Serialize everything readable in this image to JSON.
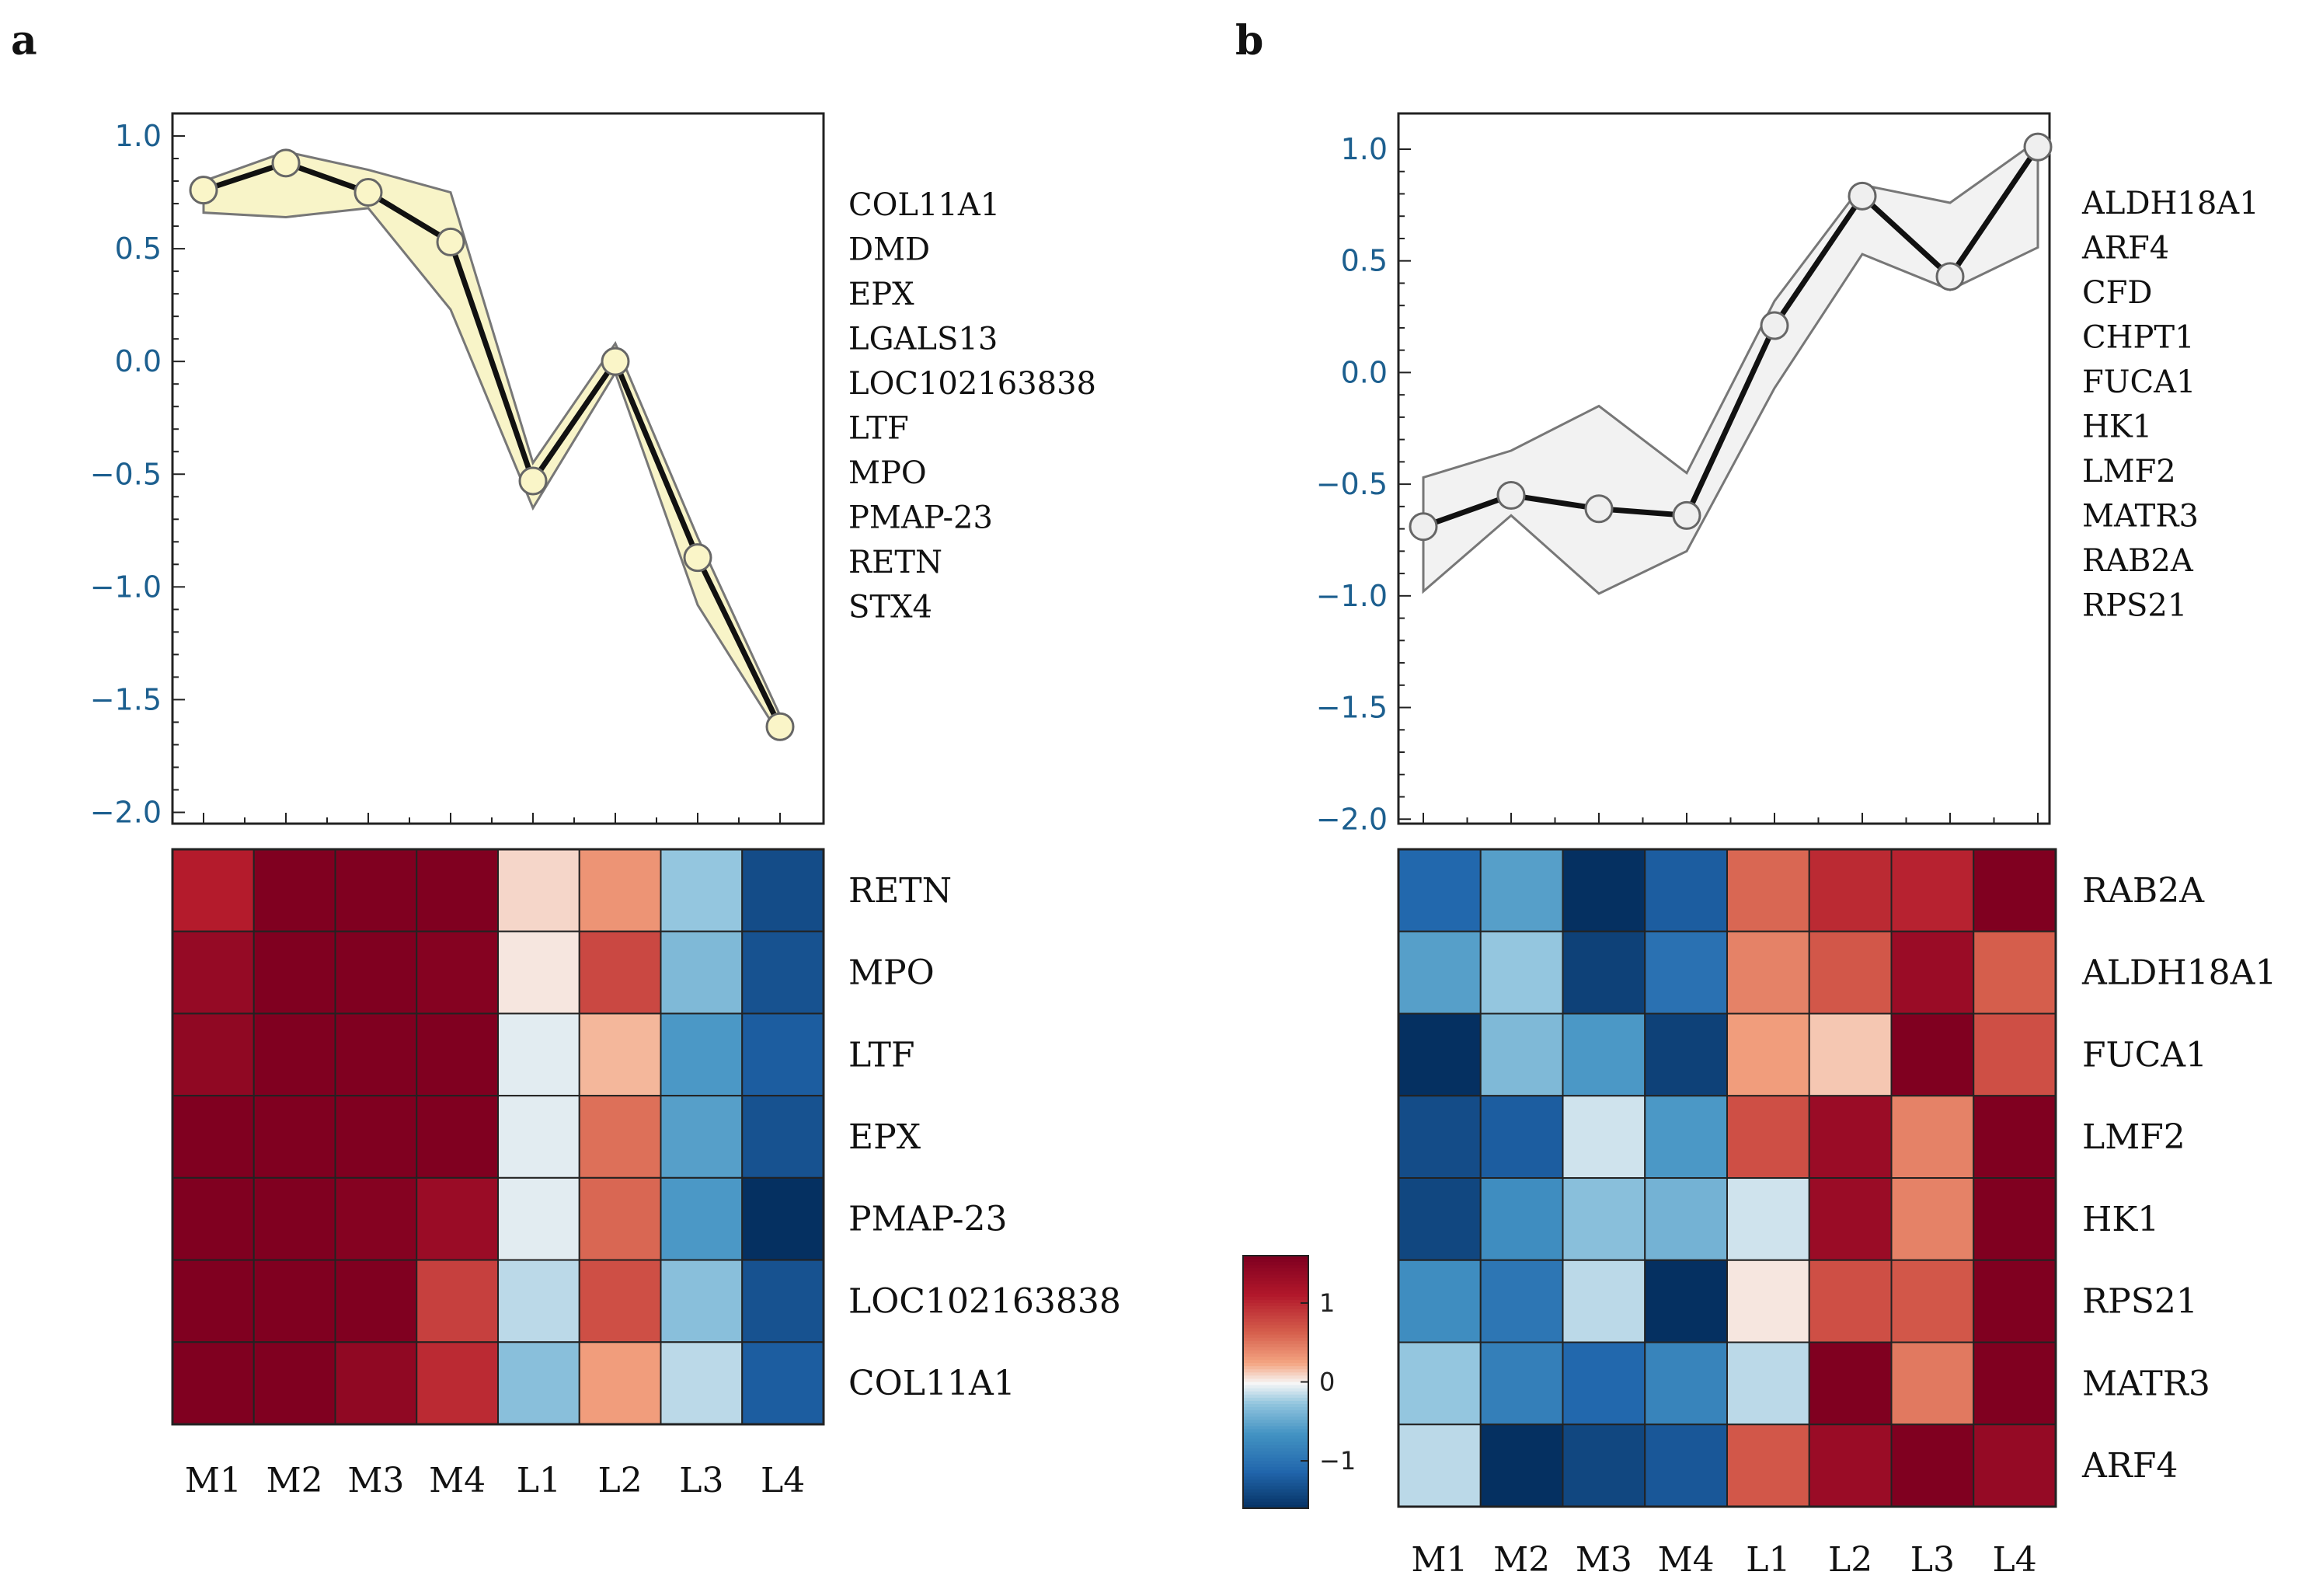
{
  "chart_data": [
    {
      "id": "a",
      "type": "line",
      "panel_label": "a",
      "x": [
        "M1",
        "M2",
        "M3",
        "M4",
        "L1",
        "L2",
        "L3",
        "L4"
      ],
      "ylim": [
        -2.05,
        1.1
      ],
      "yticks": [
        1.0,
        0.5,
        0.0,
        -0.5,
        -1.0,
        -1.5,
        -2.0
      ],
      "ytick_labels": [
        "1.0",
        "0.5",
        "0.0",
        "−0.5",
        "−1.0",
        "−1.5",
        "−2.0"
      ],
      "series": [
        {
          "name": "mean",
          "values": [
            0.76,
            0.88,
            0.75,
            0.53,
            -0.53,
            0.0,
            -0.87,
            -1.62
          ]
        },
        {
          "name": "upper",
          "values": [
            0.8,
            0.93,
            0.85,
            0.75,
            -0.45,
            0.08,
            -0.78,
            -1.57
          ]
        },
        {
          "name": "lower",
          "values": [
            0.66,
            0.64,
            0.68,
            0.23,
            -0.65,
            -0.05,
            -1.08,
            -1.66
          ]
        }
      ],
      "fill_color": "#f8f4c8",
      "marker_color": "#faf5c8",
      "genes": [
        "COL11A1",
        "DMD",
        "EPX",
        "LGALS13",
        "LOC102163838",
        "LTF",
        "MPO",
        "PMAP-23",
        "RETN",
        "STX4"
      ]
    },
    {
      "id": "b",
      "type": "line",
      "panel_label": "b",
      "x": [
        "M1",
        "M2",
        "M3",
        "M4",
        "L1",
        "L2",
        "L3",
        "L4"
      ],
      "ylim": [
        -2.02,
        1.16
      ],
      "yticks": [
        1.0,
        0.5,
        0.0,
        -0.5,
        -1.0,
        -1.5,
        -2.0
      ],
      "ytick_labels": [
        "1.0",
        "0.5",
        "0.0",
        "−0.5",
        "−1.0",
        "−1.5",
        "−2.0"
      ],
      "series": [
        {
          "name": "mean",
          "values": [
            -0.69,
            -0.55,
            -0.61,
            -0.64,
            0.21,
            0.79,
            0.43,
            1.01
          ]
        },
        {
          "name": "upper",
          "values": [
            -0.47,
            -0.35,
            -0.15,
            -0.45,
            0.32,
            0.84,
            0.76,
            1.04
          ]
        },
        {
          "name": "lower",
          "values": [
            -0.98,
            -0.64,
            -0.99,
            -0.8,
            -0.07,
            0.53,
            0.37,
            0.56
          ]
        }
      ],
      "fill_color": "#f2f2f2",
      "marker_color": "#efefef",
      "genes": [
        "ALDH18A1",
        "ARF4",
        "CFD",
        "CHPT1",
        "FUCA1",
        "HK1",
        "LMF2",
        "MATR3",
        "RAB2A",
        "RPS21"
      ]
    },
    {
      "id": "a_heatmap",
      "type": "heatmap",
      "columns": [
        "M1",
        "M2",
        "M3",
        "M4",
        "L1",
        "L2",
        "L3",
        "L4"
      ],
      "rows": [
        "RETN",
        "MPO",
        "LTF",
        "EPX",
        "PMAP-23",
        "LOC102163838",
        "COL11A1"
      ],
      "values": [
        [
          1.1,
          1.8,
          1.7,
          1.65,
          0.1,
          0.35,
          -0.25,
          -1.35
        ],
        [
          1.4,
          1.75,
          1.6,
          1.55,
          0.05,
          0.8,
          -0.35,
          -1.3
        ],
        [
          1.45,
          1.9,
          1.75,
          1.6,
          -0.05,
          0.2,
          -0.6,
          -1.2
        ],
        [
          1.65,
          1.8,
          1.85,
          1.6,
          -0.05,
          0.55,
          -0.55,
          -1.3
        ],
        [
          1.6,
          1.65,
          1.55,
          1.35,
          -0.05,
          0.6,
          -0.6,
          -1.7
        ],
        [
          1.65,
          1.9,
          1.6,
          0.85,
          -0.15,
          0.75,
          -0.3,
          -1.3
        ],
        [
          1.75,
          1.9,
          1.45,
          1.0,
          -0.3,
          0.3,
          -0.15,
          -1.2
        ]
      ],
      "vmin": -1.6,
      "vmax": 1.6
    },
    {
      "id": "b_heatmap",
      "type": "heatmap",
      "columns": [
        "M1",
        "M2",
        "M3",
        "M4",
        "L1",
        "L2",
        "L3",
        "L4"
      ],
      "rows": [
        "RAB2A",
        "ALDH18A1",
        "FUCA1",
        "LMF2",
        "HK1",
        "RPS21",
        "MATR3",
        "ARF4"
      ],
      "values": [
        [
          -1.1,
          -0.55,
          -1.6,
          -1.2,
          0.6,
          1.0,
          1.05,
          1.75
        ],
        [
          -0.55,
          -0.25,
          -1.45,
          -1.0,
          0.45,
          0.7,
          1.35,
          0.65
        ],
        [
          -1.75,
          -0.35,
          -0.6,
          -1.45,
          0.3,
          0.15,
          1.65,
          0.75
        ],
        [
          -1.35,
          -1.2,
          -0.1,
          -0.6,
          0.75,
          1.35,
          0.45,
          1.8
        ],
        [
          -1.4,
          -0.7,
          -0.3,
          -0.4,
          -0.1,
          1.35,
          0.45,
          1.9
        ],
        [
          -0.7,
          -0.95,
          -0.15,
          -1.75,
          0.05,
          0.75,
          0.7,
          1.8
        ],
        [
          -0.25,
          -0.85,
          -1.1,
          -0.8,
          -0.15,
          1.8,
          0.5,
          1.8
        ],
        [
          -0.15,
          -1.6,
          -1.4,
          -1.25,
          0.7,
          1.35,
          1.65,
          1.4
        ]
      ],
      "vmin": -1.6,
      "vmax": 1.6
    },
    {
      "id": "colorbar",
      "type": "heatmap",
      "ticks": [
        1,
        0,
        -1
      ],
      "tick_labels": [
        "1",
        "0",
        "−1"
      ],
      "range": [
        -1.6,
        1.6
      ]
    }
  ]
}
